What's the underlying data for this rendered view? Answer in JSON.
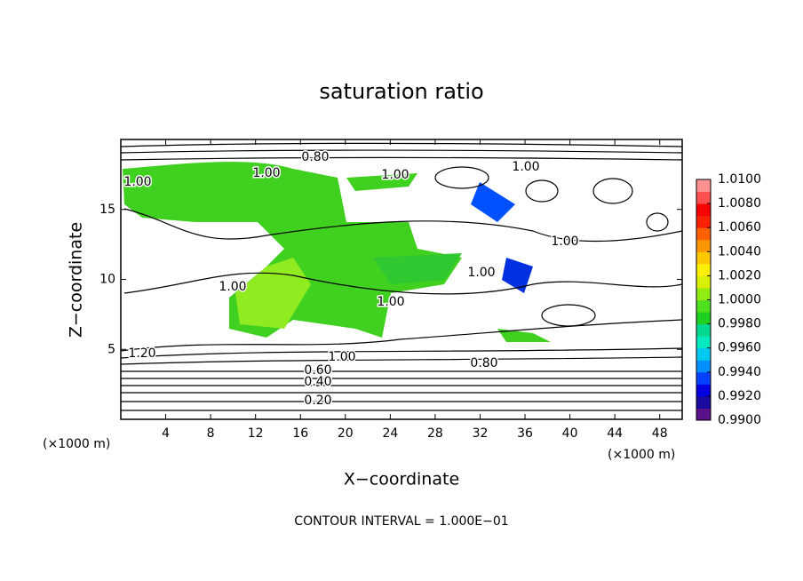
{
  "chart_data": {
    "type": "contour",
    "title": "saturation ratio",
    "x_label": "X−coordinate",
    "y_label": "Z−coordinate",
    "x_unit_left": "(×1000 m)",
    "x_unit_right": "(×1000 m)",
    "footer": "CONTOUR INTERVAL = 1.000E−01",
    "xlim": [
      0,
      50
    ],
    "xticks": [
      4,
      8,
      12,
      16,
      20,
      24,
      28,
      32,
      36,
      40,
      44,
      48
    ],
    "ylim": [
      0,
      20
    ],
    "yticks": [
      5,
      10,
      15
    ],
    "contour_labels": [
      "0.80",
      "1.00",
      "1.00",
      "1.00",
      "1.00",
      "1.00",
      "1.00",
      "1.00",
      "1.00",
      "1.20",
      "1.00",
      "0.80",
      "0.60",
      "0.40",
      "0.20"
    ],
    "colorbar": {
      "clim": [
        0.99,
        1.01
      ],
      "colors": [
        "#5a1088",
        "#1a0aa0",
        "#0000e0",
        "#0040ff",
        "#0090ff",
        "#00c8f0",
        "#00e8c0",
        "#00d890",
        "#20d020",
        "#50e020",
        "#90ec10",
        "#d8f000",
        "#fff000",
        "#ffc800",
        "#ff9800",
        "#ff6000",
        "#ff2000",
        "#ff0000",
        "#ff5050",
        "#ff9090"
      ],
      "ticks": [
        {
          "value": 0.99,
          "label": "0.9900"
        },
        {
          "value": 0.992,
          "label": "0.9920"
        },
        {
          "value": 0.994,
          "label": "0.9940"
        },
        {
          "value": 0.996,
          "label": "0.9960"
        },
        {
          "value": 0.998,
          "label": "0.9980"
        },
        {
          "value": 1.0,
          "label": "1.0000"
        },
        {
          "value": 1.002,
          "label": "1.0020"
        },
        {
          "value": 1.004,
          "label": "1.0040"
        },
        {
          "value": 1.006,
          "label": "1.0060"
        },
        {
          "value": 1.008,
          "label": "1.0080"
        },
        {
          "value": 1.01,
          "label": "1.0100"
        }
      ]
    }
  }
}
